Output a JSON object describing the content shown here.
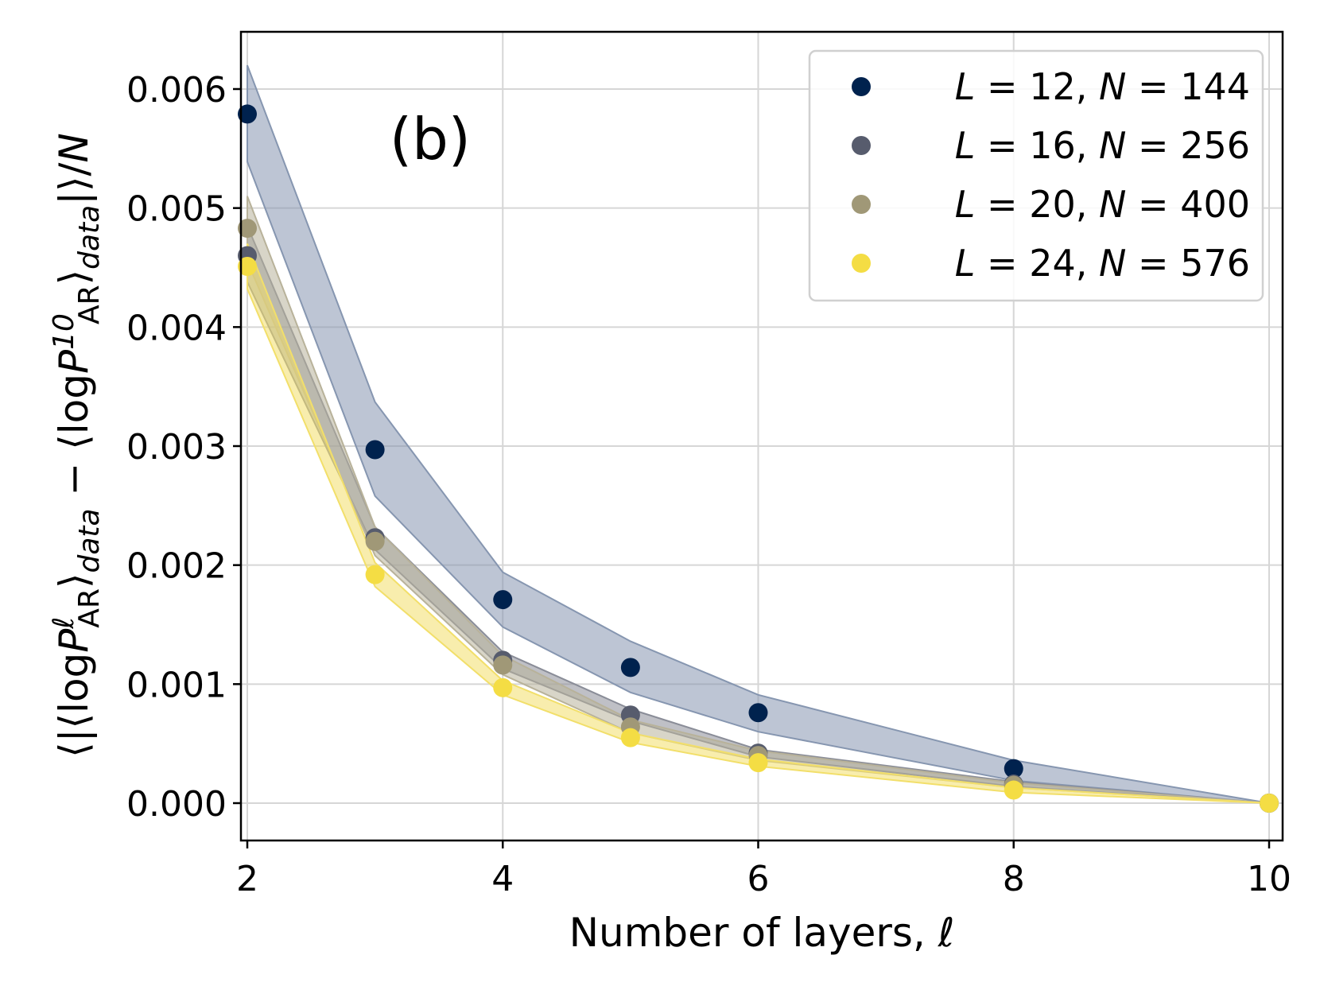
{
  "chart_data": {
    "type": "scatter",
    "panel_label": "(b)",
    "xlabel": "Number of layers, ℓ",
    "ylabel_parts": [
      {
        "t": "⟨|⟨log",
        "s": ""
      },
      {
        "t": "P",
        "s": "it"
      },
      {
        "t": "ℓ",
        "s": "sup"
      },
      {
        "t": "AR",
        "s": "subit"
      },
      {
        "t": "⟩",
        "s": ""
      },
      {
        "t": "data",
        "s": "subit"
      },
      {
        "t": " − ⟨log",
        "s": ""
      },
      {
        "t": "P",
        "s": "it"
      },
      {
        "t": "10",
        "s": "sup"
      },
      {
        "t": "AR",
        "s": "subit"
      },
      {
        "t": "⟩",
        "s": ""
      },
      {
        "t": "data",
        "s": "subit"
      },
      {
        "t": "|⟩/",
        "s": ""
      },
      {
        "t": "N",
        "s": "it"
      }
    ],
    "xlim": [
      1.95,
      10.1
    ],
    "ylim": [
      -0.0003,
      0.0065
    ],
    "xticks": [
      2,
      4,
      6,
      8,
      10
    ],
    "xtick_labels": [
      "2",
      "4",
      "6",
      "8",
      "10"
    ],
    "yticks": [
      0,
      0.001,
      0.002,
      0.003,
      0.004,
      0.005,
      0.006
    ],
    "ytick_labels": [
      "0.000",
      "0.001",
      "0.002",
      "0.003",
      "0.004",
      "0.005",
      "0.006"
    ],
    "grid": true,
    "legend_position": "top-right",
    "x": [
      2,
      3,
      4,
      5,
      6,
      8,
      10
    ],
    "series": [
      {
        "name": "L = 12, N = 144",
        "color": "#00224e",
        "band_color": "#8696b0",
        "values": [
          0.00579,
          0.00297,
          0.00171,
          0.00114,
          0.00076,
          0.00029,
          0.0
        ],
        "upper": [
          0.0062,
          0.00337,
          0.00194,
          0.00136,
          0.00091,
          0.00036,
          0.0
        ],
        "lower": [
          0.00539,
          0.00258,
          0.00148,
          0.00093,
          0.0006,
          0.00019,
          0.0
        ]
      },
      {
        "name": "L = 16, N = 256",
        "color": "#575c6d",
        "band_color": "#8a8d98",
        "values": [
          0.0046,
          0.00223,
          0.0012,
          0.00074,
          0.00042,
          0.00016,
          0.0
        ],
        "upper": [
          0.00485,
          0.00232,
          0.00127,
          0.00079,
          0.00045,
          0.00018,
          0.0
        ],
        "lower": [
          0.00438,
          0.00213,
          0.00113,
          0.00069,
          0.00039,
          0.00014,
          0.0
        ]
      },
      {
        "name": "L = 20, N = 400",
        "color": "#a09877",
        "band_color": "#b8b29a",
        "values": [
          0.00483,
          0.0022,
          0.00116,
          0.00064,
          0.0004,
          0.00015,
          0.0
        ],
        "upper": [
          0.0051,
          0.00232,
          0.00124,
          0.0007,
          0.00044,
          0.00017,
          0.0
        ],
        "lower": [
          0.00455,
          0.00208,
          0.00108,
          0.00059,
          0.00036,
          0.00013,
          0.0
        ]
      },
      {
        "name": "L = 24, N = 576",
        "color": "#f4dd44",
        "band_color": "#f2df6a",
        "values": [
          0.00451,
          0.00192,
          0.00097,
          0.00055,
          0.00034,
          0.00011,
          0.0
        ],
        "upper": [
          0.0047,
          0.00202,
          0.00103,
          0.00059,
          0.00037,
          0.00013,
          0.0
        ],
        "lower": [
          0.00432,
          0.00182,
          0.00091,
          0.00051,
          0.00031,
          9e-05,
          0.0
        ]
      }
    ]
  }
}
